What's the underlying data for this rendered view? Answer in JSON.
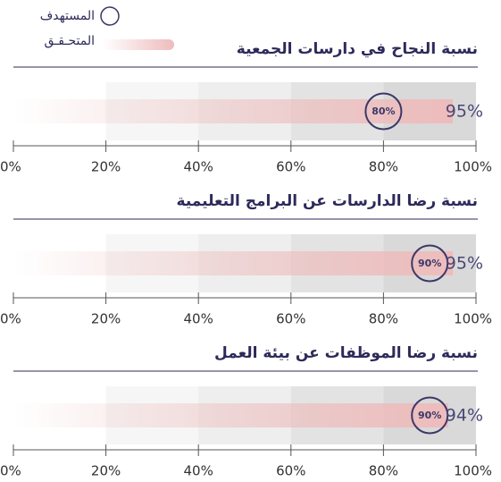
{
  "legend": {
    "target": "المستهدف",
    "actual": "المتحـقـق"
  },
  "chart_data": [
    {
      "type": "bullet",
      "title": "نسبة النجاح في دارسات الجمعية",
      "value": 95,
      "value_label": "95%",
      "target": 80,
      "target_label": "80%",
      "xlim": [
        0,
        100
      ],
      "xticks": [
        {
          "value": 0,
          "label": "0%"
        },
        {
          "value": 20,
          "label": "20%"
        },
        {
          "value": 40,
          "label": "40%"
        },
        {
          "value": 60,
          "label": "60%"
        },
        {
          "value": 80,
          "label": "80%"
        },
        {
          "value": 100,
          "label": "100%"
        }
      ],
      "band_colors": [
        "#ffffff",
        "#f6f6f6",
        "#eeeeee",
        "#e3e3e3",
        "#d9d9d9"
      ],
      "bar_color": "#eebcbc",
      "target_color": "#3b3868"
    },
    {
      "type": "bullet",
      "title": "نسبة رضا الدارسات عن البرامج التعليمية",
      "value": 95,
      "value_label": "95%",
      "target": 90,
      "target_label": "90%",
      "xlim": [
        0,
        100
      ],
      "xticks": [
        {
          "value": 0,
          "label": "0%"
        },
        {
          "value": 20,
          "label": "20%"
        },
        {
          "value": 40,
          "label": "40%"
        },
        {
          "value": 60,
          "label": "60%"
        },
        {
          "value": 80,
          "label": "80%"
        },
        {
          "value": 100,
          "label": "100%"
        }
      ],
      "band_colors": [
        "#ffffff",
        "#f6f6f6",
        "#eeeeee",
        "#e3e3e3",
        "#d9d9d9"
      ],
      "bar_color": "#eebcbc",
      "target_color": "#3b3868"
    },
    {
      "type": "bullet",
      "title": "نسبة رضا الموظفات عن بيئة العمل",
      "value": 94,
      "value_label": "94%",
      "target": 90,
      "target_label": "90%",
      "xlim": [
        0,
        100
      ],
      "xticks": [
        {
          "value": 0,
          "label": "0%"
        },
        {
          "value": 20,
          "label": "20%"
        },
        {
          "value": 40,
          "label": "40%"
        },
        {
          "value": 60,
          "label": "60%"
        },
        {
          "value": 80,
          "label": "80%"
        },
        {
          "value": 100,
          "label": "100%"
        }
      ],
      "band_colors": [
        "#ffffff",
        "#f6f6f6",
        "#eeeeee",
        "#e3e3e3",
        "#d9d9d9"
      ],
      "bar_color": "#eebcbc",
      "target_color": "#3b3868"
    }
  ]
}
